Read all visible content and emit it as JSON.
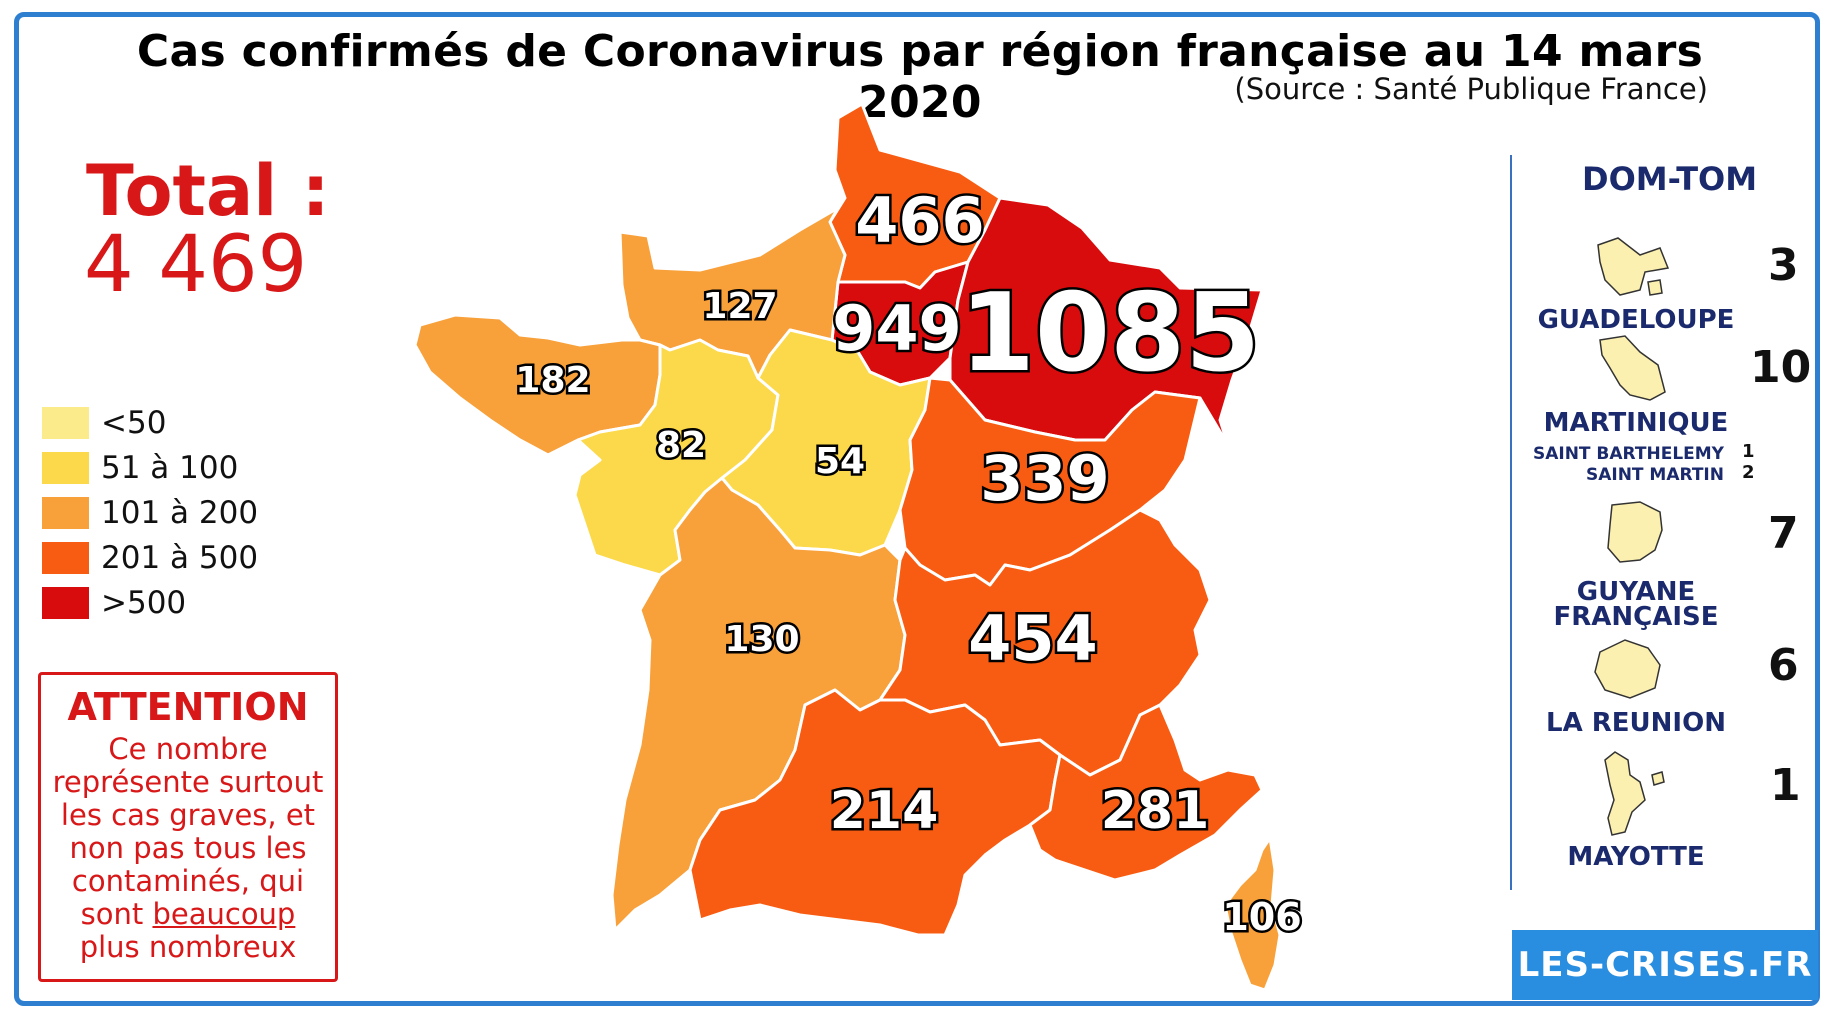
{
  "title": "Cas confirmés de Coronavirus par région française au 14 mars 2020",
  "source": "(Source : Santé Publique France)",
  "total": {
    "label": "Total :",
    "value": "4 469"
  },
  "legend": [
    {
      "label": "<50",
      "color": "#fbeb8a"
    },
    {
      "label": "51 à 100",
      "color": "#fcd94a"
    },
    {
      "label": "101 à 200",
      "color": "#f8a03a"
    },
    {
      "label": "201 à 500",
      "color": "#f85c12"
    },
    {
      "label": ">500",
      "color": "#d80c0c"
    }
  ],
  "attention": {
    "title": "ATTENTION",
    "text_before": "Ce nombre représente surtout les cas graves, et non pas tous les contaminés, qui sont ",
    "text_underlined": "beaucoup",
    "text_after": " plus nombreux"
  },
  "regions": [
    {
      "value": "466",
      "color": "#f85c12"
    },
    {
      "value": "949",
      "color": "#d80c0c"
    },
    {
      "value": "1085",
      "color": "#d80c0c"
    },
    {
      "value": "127",
      "color": "#f8a03a"
    },
    {
      "value": "182",
      "color": "#f8a03a"
    },
    {
      "value": "82",
      "color": "#fcd94a"
    },
    {
      "value": "54",
      "color": "#fcd94a"
    },
    {
      "value": "339",
      "color": "#f85c12"
    },
    {
      "value": "130",
      "color": "#f8a03a"
    },
    {
      "value": "454",
      "color": "#f85c12"
    },
    {
      "value": "214",
      "color": "#f85c12"
    },
    {
      "value": "281",
      "color": "#f85c12"
    },
    {
      "value": "106",
      "color": "#f8a03a"
    }
  ],
  "dom_tom": {
    "title": "DOM-TOM",
    "items": [
      {
        "name": "GUADELOUPE",
        "value": "3"
      },
      {
        "name": "MARTINIQUE",
        "value": "10"
      },
      {
        "name": "SAINT BARTHELEMY",
        "value": "1"
      },
      {
        "name": "SAINT MARTIN",
        "value": "2"
      },
      {
        "name": "GUYANE",
        "name2": "FRANÇAISE",
        "value": "7"
      },
      {
        "name": "LA REUNION",
        "value": "6"
      },
      {
        "name": "MAYOTTE",
        "value": "1"
      }
    ]
  },
  "logo": "LES-CRISES.FR"
}
